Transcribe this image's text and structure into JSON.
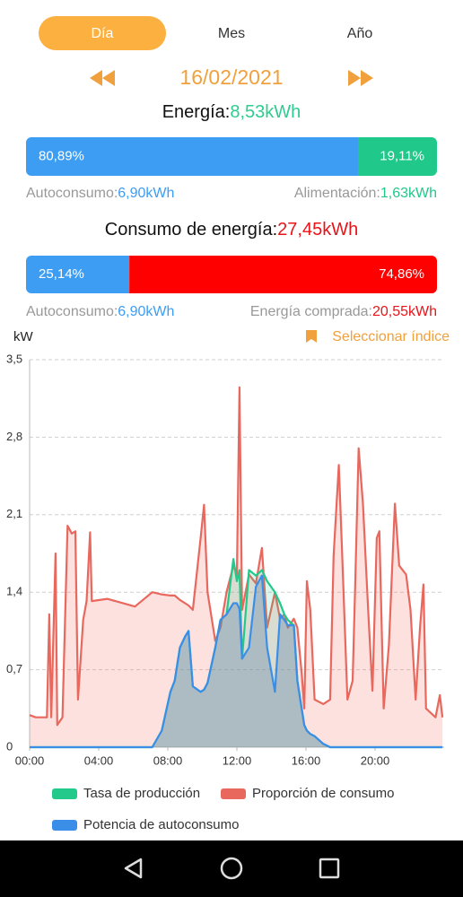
{
  "tabs": [
    "Día",
    "Mes",
    "Año"
  ],
  "date": "16/02/2021",
  "energy": {
    "label": "Energía:",
    "value": "8,53kWh"
  },
  "energy_bar": {
    "segments": [
      {
        "value": 80.89,
        "label": "80,89%",
        "color": "#3d9df3"
      },
      {
        "value": 19.11,
        "label": "19,11%",
        "color": "#20c98a"
      }
    ]
  },
  "energy_left": {
    "label": "Autoconsumo:",
    "value": "6,90kWh"
  },
  "energy_right": {
    "label": "Alimentación:",
    "value": "1,63kWh"
  },
  "consumption": {
    "label": "Consumo de energía:",
    "value": "27,45kWh"
  },
  "consumption_bar": {
    "segments": [
      {
        "value": 25.14,
        "label": "25,14%",
        "color": "#3d9df3"
      },
      {
        "value": 74.86,
        "label": "74,86%",
        "color": "#ff0000"
      }
    ]
  },
  "consumption_left": {
    "label": "Autoconsumo:",
    "value": "6,90kWh"
  },
  "consumption_right": {
    "label": "Energía comprada:",
    "value": "20,55kWh"
  },
  "chart_data": {
    "type": "area",
    "unit": "kW",
    "select_index": "Seleccionar índice",
    "x": [
      0,
      0.36,
      1.0,
      1.14,
      1.25,
      1.5,
      1.6,
      1.9,
      2.2,
      2.44,
      2.65,
      2.8,
      3.1,
      3.3,
      3.5,
      3.6,
      4.5,
      6.1,
      7.1,
      7.65,
      8.15,
      8.4,
      8.7,
      9.0,
      9.2,
      9.45,
      9.9,
      10.1,
      10.3,
      10.75,
      11.05,
      11.4,
      11.8,
      12.0,
      12.15,
      12.3,
      12.7,
      13.1,
      13.45,
      13.75,
      14.2,
      14.5,
      14.75,
      14.95,
      15.3,
      15.5,
      15.75,
      15.9,
      16.05,
      16.25,
      16.5,
      17.0,
      17.4,
      17.6,
      17.9,
      18.1,
      18.4,
      18.7,
      18.85,
      19.05,
      19.3,
      19.6,
      19.85,
      20.1,
      20.25,
      20.5,
      20.8,
      21.15,
      21.4,
      21.8,
      22.05,
      22.35,
      22.6,
      22.8,
      22.95,
      23.5,
      23.75,
      23.9
    ],
    "xlim": [
      0,
      24
    ],
    "xticks": [
      {
        "value": 0,
        "label": "00:00"
      },
      {
        "value": 4,
        "label": "04:00"
      },
      {
        "value": 8,
        "label": "08:00"
      },
      {
        "value": 12,
        "label": "12:00"
      },
      {
        "value": 16,
        "label": "16:00"
      },
      {
        "value": 20,
        "label": "20:00"
      }
    ],
    "ylim": [
      0,
      3.5
    ],
    "yticks": [
      0,
      {
        "value": 0.7,
        "label": "0,7"
      },
      {
        "value": 1.4,
        "label": "1,4"
      },
      {
        "value": 2.1,
        "label": "2,1"
      },
      {
        "value": 2.8,
        "label": "2,8"
      },
      {
        "value": 3.5,
        "label": "3,5"
      }
    ],
    "grid": true,
    "series": [
      {
        "name": "Proporción de consumo",
        "color": "#e8685e",
        "values": [
          0.29,
          0.27,
          0.27,
          1.2,
          0.27,
          1.75,
          0.2,
          0.27,
          2.0,
          1.93,
          1.95,
          0.43,
          1.15,
          1.32,
          1.94,
          1.32,
          1.34,
          1.27,
          1.4,
          1.38,
          1.37,
          1.37,
          1.33,
          1.3,
          1.28,
          1.24,
          1.89,
          2.19,
          1.4,
          0.96,
          1.08,
          1.4,
          1.64,
          1.56,
          3.25,
          1.24,
          1.56,
          1.48,
          1.8,
          1.08,
          1.4,
          1.16,
          1.2,
          1.08,
          1.16,
          1.08,
          0.67,
          0.35,
          1.5,
          1.24,
          0.43,
          0.39,
          0.43,
          1.73,
          2.55,
          1.73,
          0.43,
          0.6,
          1.48,
          2.7,
          2.2,
          1.24,
          0.51,
          1.89,
          1.95,
          0.35,
          0.92,
          2.2,
          1.64,
          1.56,
          1.24,
          0.43,
          1.08,
          1.47,
          0.35,
          0.27,
          0.47,
          0.27
        ]
      },
      {
        "name": "Tasa de producción",
        "color": "#22c98a",
        "values": [
          0,
          0,
          0,
          0,
          0,
          0,
          0,
          0,
          0,
          0,
          0,
          0,
          0,
          0,
          0,
          0,
          0,
          0,
          0,
          0.15,
          0.5,
          0.6,
          0.9,
          1.0,
          1.05,
          0.55,
          0.5,
          0.52,
          0.58,
          0.9,
          1.15,
          1.2,
          1.7,
          1.5,
          1.6,
          0.8,
          1.6,
          1.55,
          1.6,
          1.5,
          1.4,
          1.3,
          1.2,
          1.15,
          1.1,
          0.6,
          0.35,
          0.2,
          0.15,
          0.12,
          0.1,
          0.03,
          0,
          0,
          0,
          0,
          0,
          0,
          0,
          0,
          0,
          0,
          0,
          0,
          0,
          0,
          0,
          0,
          0,
          0,
          0,
          0,
          0,
          0,
          0,
          0,
          0,
          0
        ]
      },
      {
        "name": "Potencia de autoconsumo",
        "color": "#3a8ee8",
        "values": [
          0,
          0,
          0,
          0,
          0,
          0,
          0,
          0,
          0,
          0,
          0,
          0,
          0,
          0,
          0,
          0,
          0,
          0,
          0,
          0.15,
          0.5,
          0.6,
          0.9,
          1.0,
          1.05,
          0.55,
          0.5,
          0.52,
          0.58,
          0.9,
          1.15,
          1.2,
          1.3,
          1.3,
          1.25,
          0.8,
          0.9,
          1.45,
          1.55,
          0.9,
          0.5,
          1.2,
          1.15,
          1.1,
          1.1,
          0.6,
          0.35,
          0.2,
          0.15,
          0.12,
          0.1,
          0.03,
          0,
          0,
          0,
          0,
          0,
          0,
          0,
          0,
          0,
          0,
          0,
          0,
          0,
          0,
          0,
          0,
          0,
          0,
          0,
          0,
          0,
          0,
          0,
          0,
          0,
          0
        ]
      }
    ]
  }
}
